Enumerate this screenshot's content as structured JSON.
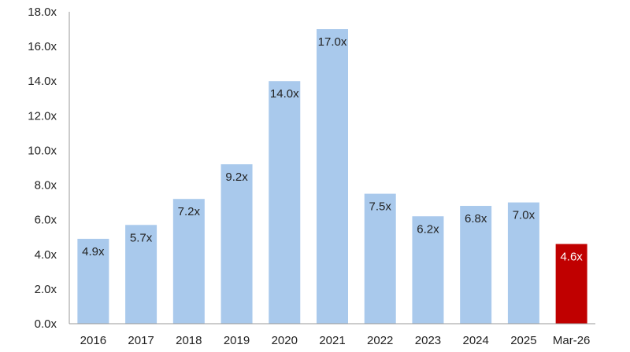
{
  "chart_data": {
    "type": "bar",
    "title": "",
    "xlabel": "",
    "ylabel": "",
    "categories": [
      "2016",
      "2017",
      "2018",
      "2019",
      "2020",
      "2021",
      "2022",
      "2023",
      "2024",
      "2025",
      "Mar-26"
    ],
    "values": [
      4.9,
      5.7,
      7.2,
      9.2,
      14.0,
      17.0,
      7.5,
      6.2,
      6.8,
      7.0,
      4.6
    ],
    "data_labels": [
      "4.9x",
      "5.7x",
      "7.2x",
      "9.2x",
      "14.0x",
      "17.0x",
      "7.5x",
      "6.2x",
      "6.8x",
      "7.0x",
      "4.6x"
    ],
    "ylim": [
      0,
      18
    ],
    "yticks": [
      0,
      2,
      4,
      6,
      8,
      10,
      12,
      14,
      16,
      18
    ],
    "ytick_labels": [
      "0.0x",
      "2.0x",
      "4.0x",
      "6.0x",
      "8.0x",
      "10.0x",
      "12.0x",
      "14.0x",
      "16.0x",
      "18.0x"
    ],
    "grid": false,
    "legend": "none",
    "colors": {
      "bar": "#a9c9ec",
      "highlight": "#c00000",
      "axis": "#999999"
    },
    "highlight_category": "Mar-26"
  }
}
